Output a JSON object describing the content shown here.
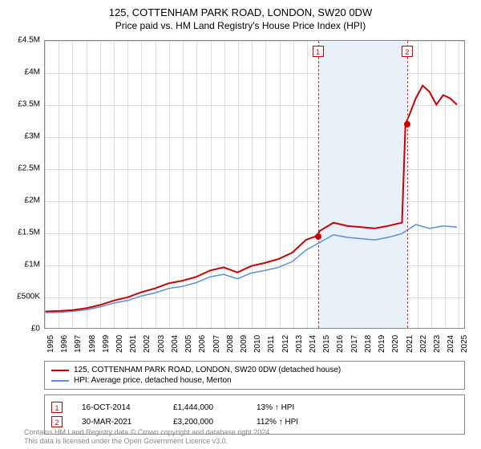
{
  "title": "125, COTTENHAM PARK ROAD, LONDON, SW20 0DW",
  "subtitle": "Price paid vs. HM Land Registry's House Price Index (HPI)",
  "chart": {
    "type": "line",
    "background_color": "#ffffff",
    "grid_color": "#dddddd",
    "border_color": "#888888",
    "xlim": [
      1995,
      2025.5
    ],
    "ylim": [
      0,
      4500000
    ],
    "ytick_step": 500000,
    "yticks": [
      "£0",
      "£500K",
      "£1M",
      "£1.5M",
      "£2M",
      "£2.5M",
      "£3M",
      "£3.5M",
      "£4M",
      "£4.5M"
    ],
    "xticks": [
      1995,
      1996,
      1997,
      1998,
      1999,
      2000,
      2001,
      2002,
      2003,
      2004,
      2005,
      2006,
      2007,
      2008,
      2009,
      2010,
      2011,
      2012,
      2013,
      2014,
      2015,
      2016,
      2017,
      2018,
      2019,
      2020,
      2021,
      2022,
      2023,
      2024,
      2025
    ],
    "shaded_region": {
      "start": 2014.79,
      "end": 2021.25,
      "color": "#e8f0fa"
    },
    "markers": [
      {
        "id": "1",
        "x": 2014.79,
        "y": 1444000
      },
      {
        "id": "2",
        "x": 2021.25,
        "y": 3200000
      }
    ],
    "series": [
      {
        "name": "125, COTTENHAM PARK ROAD, LONDON, SW20 0DW (detached house)",
        "color": "#cc0000",
        "line_width": 2,
        "points": [
          [
            1995,
            260000
          ],
          [
            1996,
            265000
          ],
          [
            1997,
            280000
          ],
          [
            1998,
            310000
          ],
          [
            1999,
            360000
          ],
          [
            2000,
            430000
          ],
          [
            2001,
            480000
          ],
          [
            2002,
            560000
          ],
          [
            2003,
            620000
          ],
          [
            2004,
            700000
          ],
          [
            2005,
            740000
          ],
          [
            2006,
            800000
          ],
          [
            2007,
            900000
          ],
          [
            2008,
            950000
          ],
          [
            2009,
            870000
          ],
          [
            2010,
            970000
          ],
          [
            2011,
            1020000
          ],
          [
            2012,
            1080000
          ],
          [
            2013,
            1180000
          ],
          [
            2014,
            1380000
          ],
          [
            2014.79,
            1444000
          ],
          [
            2015,
            1520000
          ],
          [
            2016,
            1650000
          ],
          [
            2017,
            1600000
          ],
          [
            2018,
            1580000
          ],
          [
            2019,
            1560000
          ],
          [
            2020,
            1600000
          ],
          [
            2021,
            1650000
          ],
          [
            2021.25,
            3200000
          ],
          [
            2021.5,
            3320000
          ],
          [
            2022,
            3600000
          ],
          [
            2022.5,
            3800000
          ],
          [
            2023,
            3700000
          ],
          [
            2023.5,
            3500000
          ],
          [
            2024,
            3650000
          ],
          [
            2024.5,
            3600000
          ],
          [
            2025,
            3500000
          ]
        ]
      },
      {
        "name": "HPI: Average price, detached house, Merton",
        "color": "#5b8fd6",
        "line_width": 1.5,
        "points": [
          [
            1995,
            240000
          ],
          [
            1996,
            245000
          ],
          [
            1997,
            260000
          ],
          [
            1998,
            285000
          ],
          [
            1999,
            330000
          ],
          [
            2000,
            390000
          ],
          [
            2001,
            430000
          ],
          [
            2002,
            500000
          ],
          [
            2003,
            550000
          ],
          [
            2004,
            620000
          ],
          [
            2005,
            650000
          ],
          [
            2006,
            710000
          ],
          [
            2007,
            800000
          ],
          [
            2008,
            840000
          ],
          [
            2009,
            770000
          ],
          [
            2010,
            860000
          ],
          [
            2011,
            900000
          ],
          [
            2012,
            950000
          ],
          [
            2013,
            1040000
          ],
          [
            2014,
            1220000
          ],
          [
            2015,
            1340000
          ],
          [
            2016,
            1460000
          ],
          [
            2017,
            1420000
          ],
          [
            2018,
            1400000
          ],
          [
            2019,
            1380000
          ],
          [
            2020,
            1420000
          ],
          [
            2021,
            1480000
          ],
          [
            2022,
            1620000
          ],
          [
            2023,
            1560000
          ],
          [
            2024,
            1600000
          ],
          [
            2025,
            1580000
          ]
        ]
      }
    ]
  },
  "legend": {
    "items": [
      {
        "color": "#cc0000",
        "label": "125, COTTENHAM PARK ROAD, LONDON, SW20 0DW (detached house)"
      },
      {
        "color": "#5b8fd6",
        "label": "HPI: Average price, detached house, Merton"
      }
    ]
  },
  "transactions": [
    {
      "id": "1",
      "date": "16-OCT-2014",
      "price": "£1,444,000",
      "delta": "13% ↑ HPI"
    },
    {
      "id": "2",
      "date": "30-MAR-2021",
      "price": "£3,200,000",
      "delta": "112% ↑ HPI"
    }
  ],
  "footer": {
    "line1": "Contains HM Land Registry data © Crown copyright and database right 2024.",
    "line2": "This data is licensed under the Open Government Licence v3.0."
  }
}
